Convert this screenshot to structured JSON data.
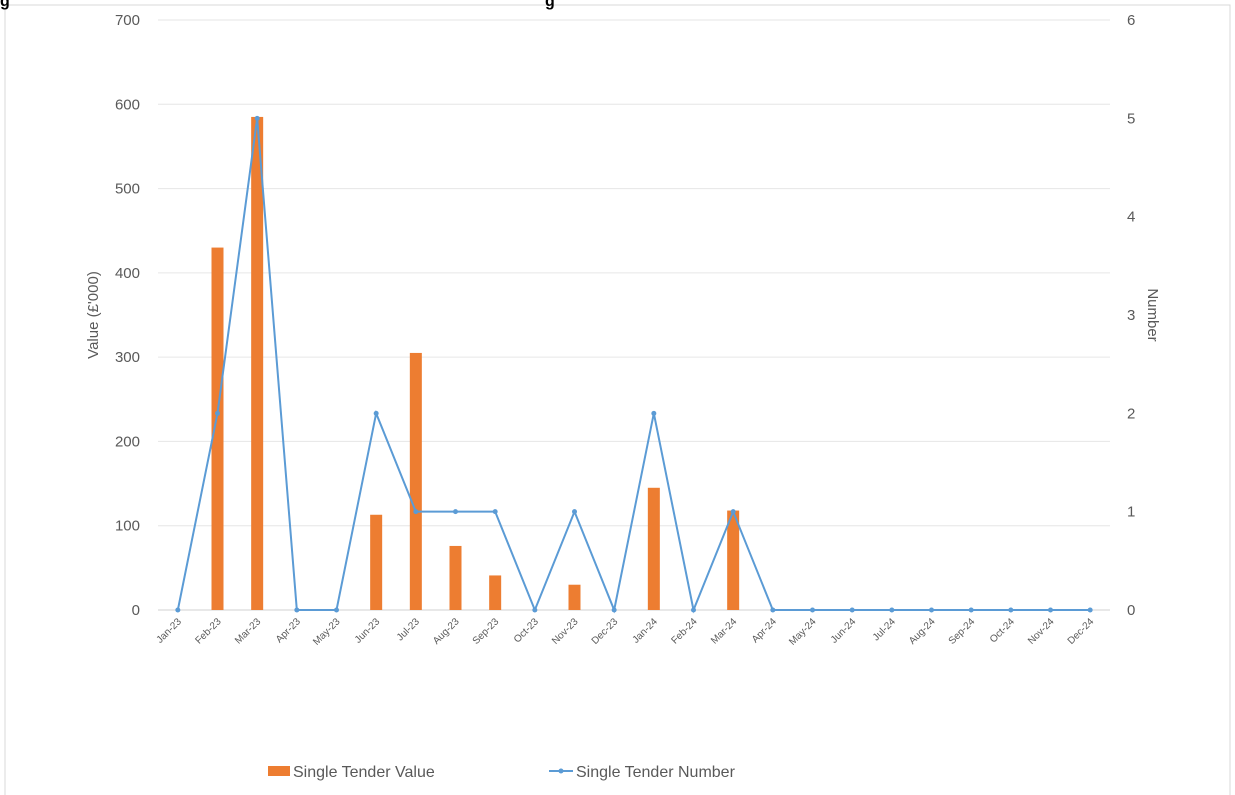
{
  "title_fragments": [
    "g",
    "g"
  ],
  "chart_data": {
    "type": "bar+line",
    "categories": [
      "Jan-23",
      "Feb-23",
      "Mar-23",
      "Apr-23",
      "May-23",
      "Jun-23",
      "Jul-23",
      "Aug-23",
      "Sep-23",
      "Oct-23",
      "Nov-23",
      "Dec-23",
      "Jan-24",
      "Feb-24",
      "Mar-24",
      "Apr-24",
      "May-24",
      "Jun-24",
      "Jul-24",
      "Aug-24",
      "Sep-24",
      "Oct-24",
      "Nov-24",
      "Dec-24"
    ],
    "series": [
      {
        "name": "Single Tender Value",
        "type": "bar",
        "axis": "left",
        "color": "#ED7D31",
        "values": [
          0,
          430,
          585,
          0,
          0,
          113,
          305,
          76,
          41,
          0,
          30,
          0,
          145,
          0,
          118,
          0,
          0,
          0,
          0,
          0,
          0,
          0,
          0,
          0
        ]
      },
      {
        "name": "Single Tender Number",
        "type": "line",
        "axis": "right",
        "color": "#5B9BD5",
        "values": [
          0,
          2,
          5,
          0,
          0,
          2,
          1,
          1,
          1,
          0,
          1,
          0,
          2,
          0,
          1,
          0,
          0,
          0,
          0,
          0,
          0,
          0,
          0,
          0
        ]
      }
    ],
    "ylabel": "Value (£'000)",
    "y2label": "Number",
    "ylim": [
      0,
      700
    ],
    "y2lim": [
      0,
      6
    ],
    "yticks": [
      "0",
      "100",
      "200",
      "300",
      "400",
      "500",
      "600",
      "700"
    ],
    "y2ticks": [
      "0",
      "1",
      "2",
      "3",
      "4",
      "5",
      "6"
    ],
    "grid": true,
    "legend": "bottom"
  }
}
